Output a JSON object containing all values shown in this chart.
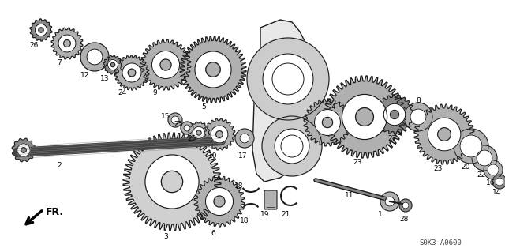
{
  "title": "",
  "bg_color": "#ffffff",
  "part_code": "S0K3-A0600",
  "fr_label": "FR.",
  "fig_width": 6.4,
  "fig_height": 3.19,
  "dpi": 100,
  "line_color": "#1a1a1a",
  "label_fontsize": 6.5,
  "label_color": "#000000",
  "shaft_color": "#2a2a2a",
  "bg_gear_color": "#888888",
  "gear_fill": "#cccccc",
  "gear_dark": "#555555",
  "gear_mid": "#999999"
}
